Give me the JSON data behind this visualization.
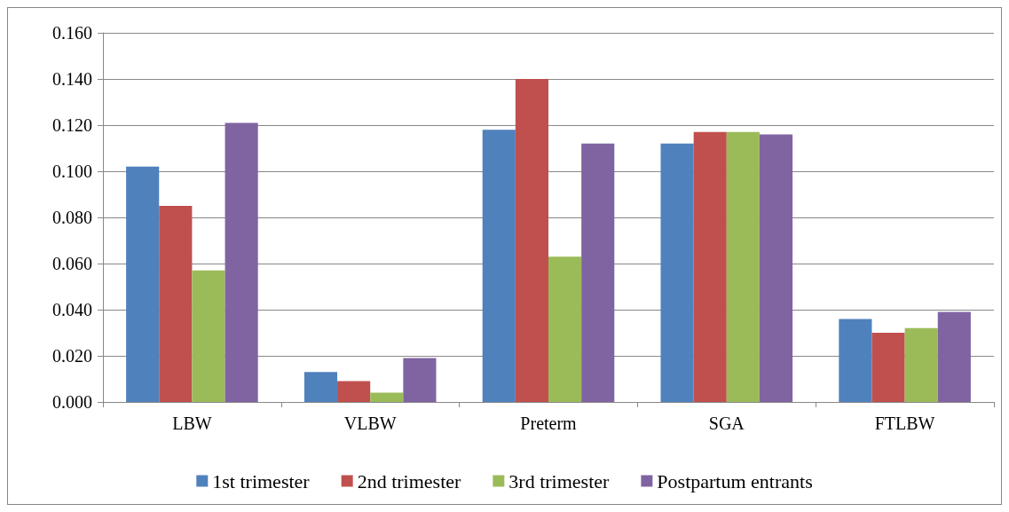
{
  "chart_data": {
    "type": "bar",
    "categories": [
      "LBW",
      "VLBW",
      "Preterm",
      "SGA",
      "FTLBW"
    ],
    "series": [
      {
        "name": "1st trimester",
        "color": "#4f81bd",
        "values": [
          0.102,
          0.013,
          0.118,
          0.112,
          0.036
        ]
      },
      {
        "name": "2nd trimester",
        "color": "#c0504d",
        "values": [
          0.085,
          0.009,
          0.14,
          0.117,
          0.03
        ]
      },
      {
        "name": "3rd trimester",
        "color": "#9bbb59",
        "values": [
          0.057,
          0.004,
          0.063,
          0.117,
          0.032
        ]
      },
      {
        "name": "Postpartum entrants",
        "color": "#8064a2",
        "values": [
          0.121,
          0.019,
          0.112,
          0.116,
          0.039
        ]
      }
    ],
    "ylim": [
      0,
      0.16
    ],
    "yticks": [
      {
        "value": 0,
        "label": "0.000"
      },
      {
        "value": 0.02,
        "label": "0.020"
      },
      {
        "value": 0.04,
        "label": "0.040"
      },
      {
        "value": 0.06,
        "label": "0.060"
      },
      {
        "value": 0.08,
        "label": "0.080"
      },
      {
        "value": 0.1,
        "label": "0.100"
      },
      {
        "value": 0.12,
        "label": "0.120"
      },
      {
        "value": 0.14,
        "label": "0.140"
      },
      {
        "value": 0.16,
        "label": "0.160"
      }
    ],
    "grid": "y",
    "legend": "bottom"
  }
}
